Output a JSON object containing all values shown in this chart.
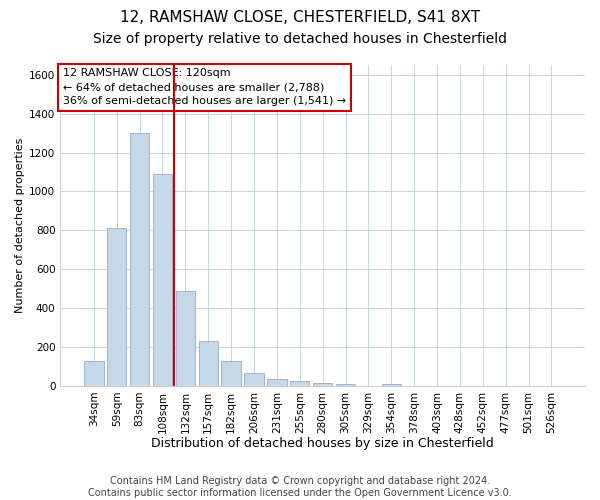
{
  "title1": "12, RAMSHAW CLOSE, CHESTERFIELD, S41 8XT",
  "title2": "Size of property relative to detached houses in Chesterfield",
  "xlabel": "Distribution of detached houses by size in Chesterfield",
  "ylabel": "Number of detached properties",
  "categories": [
    "34sqm",
    "59sqm",
    "83sqm",
    "108sqm",
    "132sqm",
    "157sqm",
    "182sqm",
    "206sqm",
    "231sqm",
    "255sqm",
    "280sqm",
    "305sqm",
    "329sqm",
    "354sqm",
    "378sqm",
    "403sqm",
    "428sqm",
    "452sqm",
    "477sqm",
    "501sqm",
    "526sqm"
  ],
  "values": [
    130,
    810,
    1300,
    1090,
    490,
    230,
    130,
    65,
    35,
    25,
    15,
    8,
    0,
    12,
    0,
    0,
    0,
    0,
    0,
    0,
    0
  ],
  "bar_color": "#c5d8e8",
  "bar_edge_color": "#a0b8cc",
  "vline_x": 3.5,
  "vline_color": "#cc0000",
  "annotation_line1": "12 RAMSHAW CLOSE: 120sqm",
  "annotation_line2": "← 64% of detached houses are smaller (2,788)",
  "annotation_line3": "36% of semi-detached houses are larger (1,541) →",
  "annotation_box_color": "white",
  "annotation_box_edge": "#cc0000",
  "ylim": [
    0,
    1650
  ],
  "yticks": [
    0,
    200,
    400,
    600,
    800,
    1000,
    1200,
    1400,
    1600
  ],
  "footnote": "Contains HM Land Registry data © Crown copyright and database right 2024.\nContains public sector information licensed under the Open Government Licence v3.0.",
  "bg_color": "#ffffff",
  "plot_bg_color": "#ffffff",
  "grid_color": "#c8d4e0",
  "title1_fontsize": 11,
  "title2_fontsize": 10,
  "xlabel_fontsize": 9,
  "ylabel_fontsize": 8,
  "tick_fontsize": 7.5,
  "footnote_fontsize": 7,
  "annot_fontsize": 8
}
